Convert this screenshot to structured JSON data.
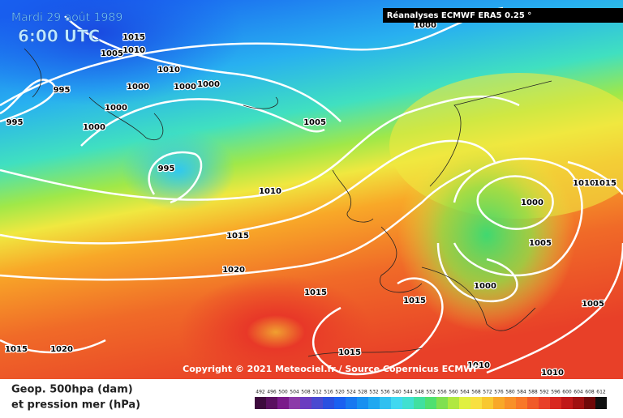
{
  "header": {
    "date": "Mardi 29 août 1989",
    "time": "6:00 UTC",
    "source": "Réanalyses ECMWF ERA5 0.25 °"
  },
  "copyright": "Copyright © 2021 Meteociel.fr / Source Copernicus ECMWF",
  "isobar_labels": [
    "1015",
    "1005",
    "1010",
    "1010",
    "1000",
    "1000",
    "1000",
    "995",
    "1000",
    "1000",
    "995",
    "1005",
    "995",
    "1010",
    "1015",
    "1020",
    "1015",
    "1015",
    "1000",
    "1005",
    "1000",
    "1010",
    "1015",
    "1005",
    "1015",
    "1020",
    "1015",
    "1010",
    "1010",
    "1000"
  ],
  "legend": {
    "line1": "Geop. 500hpa (dam)",
    "line2": "et pression mer (hPa)"
  },
  "colorbar": {
    "labels": [
      492,
      496,
      500,
      504,
      508,
      512,
      516,
      520,
      524,
      528,
      532,
      536,
      540,
      544,
      548,
      552,
      556,
      560,
      564,
      568,
      572,
      576,
      580,
      584,
      588,
      592,
      596,
      600,
      604,
      608,
      612
    ],
    "colors": [
      "#3d0a3d",
      "#5a1060",
      "#7a1a8a",
      "#8c3aa8",
      "#6a3cc0",
      "#4a4ad0",
      "#2a50e0",
      "#1a60f0",
      "#1878f0",
      "#1890f0",
      "#20a8f0",
      "#30c0f0",
      "#40d8f0",
      "#40e0d0",
      "#40e0a0",
      "#50e070",
      "#80e050",
      "#b0e840",
      "#e0f040",
      "#f8e040",
      "#f8c830",
      "#f8a828",
      "#f89028",
      "#f87828",
      "#f05a28",
      "#e84028",
      "#d82820",
      "#c01818",
      "#a01010",
      "#700808",
      "#101010"
    ]
  }
}
